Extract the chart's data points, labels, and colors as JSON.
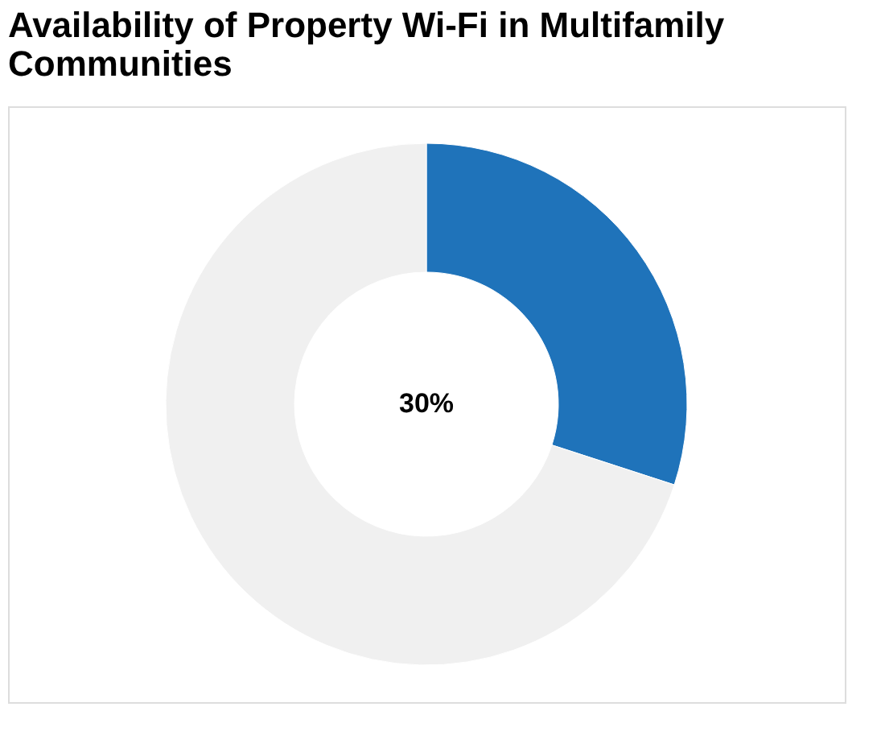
{
  "chart_data": {
    "type": "donut",
    "title": "Availability of Property Wi-Fi in Multifamily Communities",
    "categories": [
      null,
      null
    ],
    "values": [
      30,
      70
    ],
    "colors": [
      "#1f73ba",
      "#f0f0f0"
    ],
    "annotations": [
      "30%"
    ],
    "legend": false
  }
}
